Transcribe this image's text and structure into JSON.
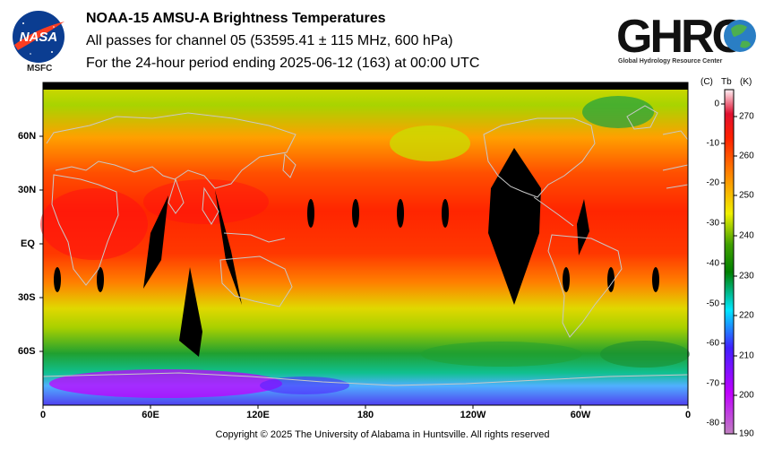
{
  "header": {
    "title": "NOAA-15 AMSU-A Brightness Temperatures",
    "subtitle": "All passes for channel 05 (53595.41 ± 115 MHz, 600 hPa)",
    "period": "For the 24-hour period ending 2025-06-12 (163) at 00:00 UTC"
  },
  "logos": {
    "nasa_text": "NASA",
    "center": "MSFC",
    "ghrc_text": "GHRC",
    "ghrc_full": "Global Hydrology Resource Center"
  },
  "map": {
    "lat_labels": [
      "60N",
      "30N",
      "EQ",
      "30S",
      "60S"
    ],
    "lon_labels": [
      "0",
      "60E",
      "120E",
      "180",
      "120W",
      "60W",
      "0"
    ]
  },
  "colorbar": {
    "header_c": "(C)",
    "header_tb": "Tb",
    "header_k": "(K)",
    "celsius": [
      "0",
      "-10",
      "-20",
      "-30",
      "-40",
      "-50",
      "-60",
      "-70",
      "-80"
    ],
    "kelvin": [
      "270",
      "260",
      "250",
      "240",
      "230",
      "220",
      "210",
      "200",
      "190"
    ],
    "colors": [
      "#a070a0",
      "#c000ff",
      "#6040ff",
      "#00e0ff",
      "#008000",
      "#40a000",
      "#e0e000",
      "#ff8000",
      "#ff2000",
      "#e01030",
      "#f0a0b0",
      "#ffffff"
    ]
  },
  "footer": {
    "copyright": "Copyright © 2025 The University of Alabama in Huntsville.  All rights reserved"
  }
}
